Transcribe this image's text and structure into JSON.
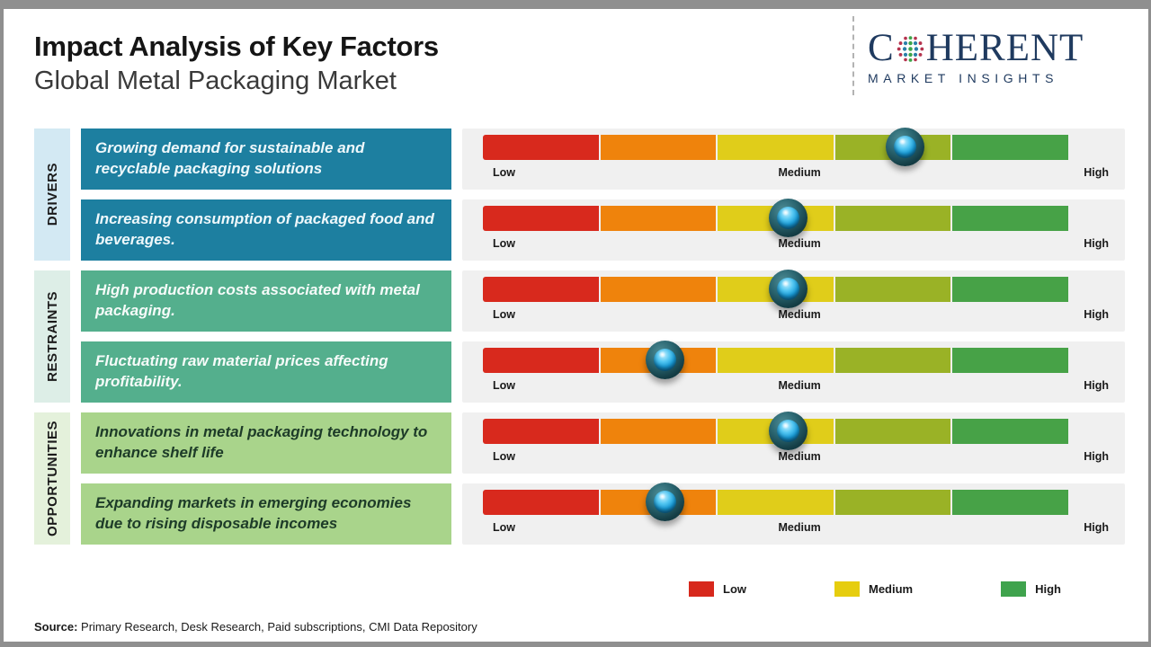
{
  "header": {
    "title": "Impact Analysis of Key Factors",
    "subtitle": "Global Metal Packaging Market"
  },
  "logo": {
    "word_start": "C",
    "word_end": "HERENT",
    "tagline": "MARKET INSIGHTS",
    "color": "#1f3a5f"
  },
  "groups": [
    {
      "label": "DRIVERS"
    },
    {
      "label": "RESTRAINTS"
    },
    {
      "label": "OPPORTUNITIES"
    }
  ],
  "rows": [
    {
      "group": 0,
      "text": "Growing demand for sustainable and recyclable packaging solutions",
      "knob_percent": 72,
      "impact_level": "Medium-High"
    },
    {
      "group": 0,
      "text": "Increasing consumption of packaged food and beverages.",
      "knob_percent": 52,
      "impact_level": "Medium"
    },
    {
      "group": 1,
      "text": "High production costs associated with metal packaging.",
      "knob_percent": 52,
      "impact_level": "Medium"
    },
    {
      "group": 1,
      "text": "Fluctuating raw material prices affecting profitability.",
      "knob_percent": 31,
      "impact_level": "Low-Medium"
    },
    {
      "group": 2,
      "text": "Innovations in metal packaging technology to enhance shelf life",
      "knob_percent": 52,
      "impact_level": "Medium"
    },
    {
      "group": 2,
      "text": "Expanding markets in emerging economies due to rising disposable incomes",
      "knob_percent": 31,
      "impact_level": "Low-Medium"
    }
  ],
  "scale": {
    "low": "Low",
    "medium": "Medium",
    "high": "High"
  },
  "colors": {
    "bar_segments": [
      "#d8291d",
      "#ef830c",
      "#e0cd1a",
      "#9ab226",
      "#47a247"
    ],
    "driver_box": "#1d7fa0",
    "restraint_box": "#54af8d",
    "opportunity_box": "#a9d48b",
    "driver_strip": "#d3e9f3",
    "restraint_strip": "#ddeee7",
    "opportunity_strip": "#e4f1db",
    "panel_bg": "#f0f0f0"
  },
  "legend": {
    "items": [
      {
        "label": "Low",
        "color": "#d7281c"
      },
      {
        "label": "Medium",
        "color": "#e6cd0f"
      },
      {
        "label": "High",
        "color": "#3fa34d"
      }
    ]
  },
  "source": {
    "label": "Source:",
    "text": " Primary Research, Desk Research, Paid subscriptions, CMI Data Repository"
  },
  "chart_data": {
    "type": "bar",
    "title": "Impact Analysis of Key Factors",
    "subtitle": "Global Metal Packaging Market",
    "scale_labels": [
      "Low",
      "Medium",
      "High"
    ],
    "scale_range_percent": [
      0,
      100
    ],
    "categories": [
      "Growing demand for sustainable and recyclable packaging solutions",
      "Increasing consumption of packaged food and beverages.",
      "High production costs associated with metal packaging.",
      "Fluctuating raw material prices affecting profitability.",
      "Innovations in metal packaging technology to enhance shelf life",
      "Expanding markets in emerging economies due to rising disposable incomes"
    ],
    "groups": [
      "Drivers",
      "Drivers",
      "Restraints",
      "Restraints",
      "Opportunities",
      "Opportunities"
    ],
    "values_percent": [
      72,
      52,
      52,
      31,
      52,
      31
    ],
    "impact_levels": [
      "Medium-High",
      "Medium",
      "Medium",
      "Low-Medium",
      "Medium",
      "Low-Medium"
    ],
    "legend_position": "bottom",
    "legend_entries": [
      "Low",
      "Medium",
      "High"
    ]
  }
}
